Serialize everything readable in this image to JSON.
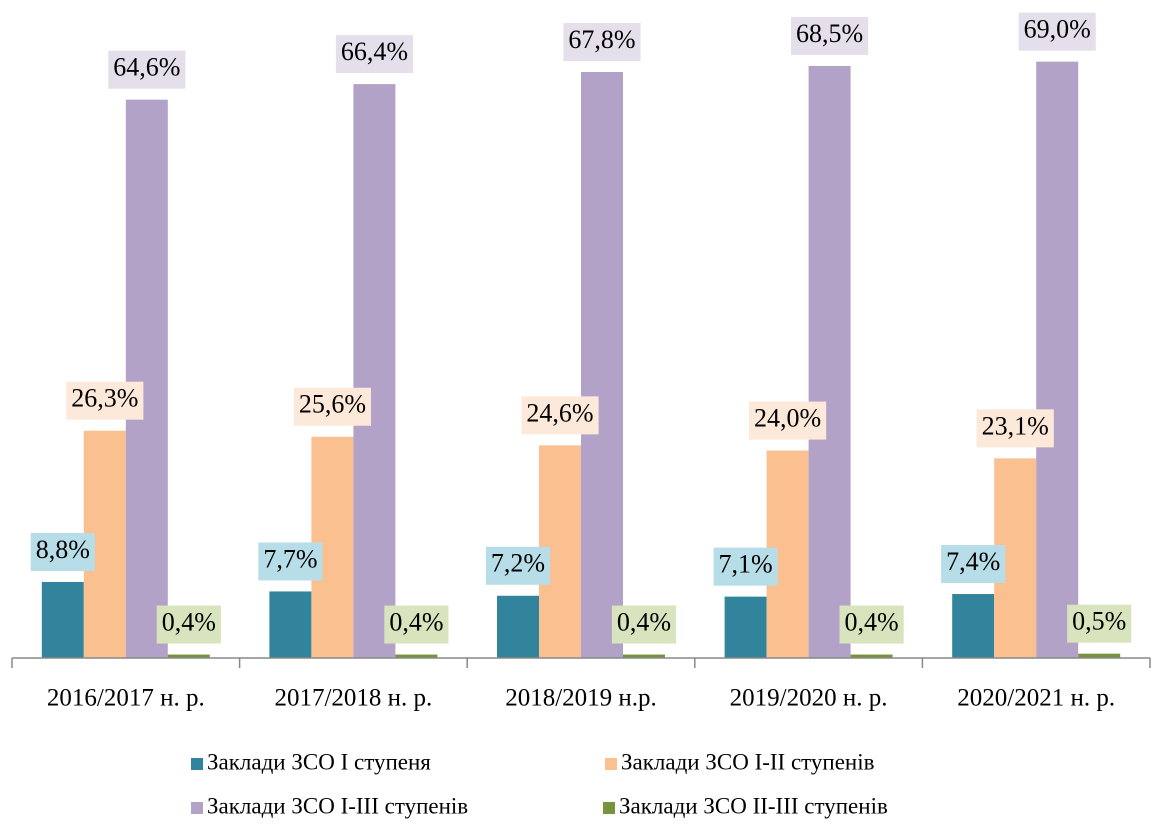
{
  "chart_data": {
    "type": "bar",
    "categories": [
      "2016/2017 н. р.",
      "2017/2018 н. р.",
      "2018/2019 н.р.",
      "2019/2020 н. р.",
      "2020/2021 н. р."
    ],
    "series": [
      {
        "name": "Заклади ЗСО І ступеня",
        "color": "#31849b",
        "label_color": "#b7dde8",
        "values": [
          8.8,
          7.7,
          7.2,
          7.1,
          7.4
        ],
        "value_labels": [
          "8,8%",
          "7,7%",
          "7,2%",
          "7,1%",
          "7,4%"
        ]
      },
      {
        "name": "Заклади ЗСО І-ІІ ступенів",
        "color": "#fac090",
        "label_color": "#fde9d9",
        "values": [
          26.3,
          25.6,
          24.6,
          24.0,
          23.1
        ],
        "value_labels": [
          "26,3%",
          "25,6%",
          "24,6%",
          "24,0%",
          "23,1%"
        ]
      },
      {
        "name": "Заклади ЗСО І-ІІІ ступенів",
        "color": "#b3a2c7",
        "label_color": "#e5dfec",
        "values": [
          64.6,
          66.4,
          67.8,
          68.5,
          69.0
        ],
        "value_labels": [
          "64,6%",
          "66,4%",
          "67,8%",
          "68,5%",
          "69,0%"
        ]
      },
      {
        "name": "Заклади ЗСО ІІ-ІІІ ступенів",
        "color": "#77933c",
        "label_color": "#d7e4bd",
        "values": [
          0.4,
          0.4,
          0.4,
          0.4,
          0.5
        ],
        "value_labels": [
          "0,4%",
          "0,4%",
          "0,4%",
          "0,4%",
          "0,5%"
        ]
      }
    ],
    "ylim": [
      0,
      70
    ],
    "legend": "bottom"
  }
}
